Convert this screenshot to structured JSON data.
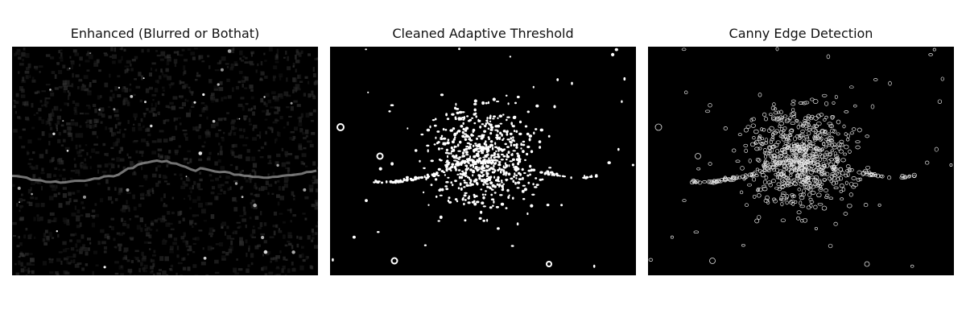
{
  "panels": [
    {
      "title": "Enhanced (Blurred or Bothat)",
      "style": "grayscale-noise",
      "colors": {
        "background": "#000000",
        "crack": "#9a9a9a"
      }
    },
    {
      "title": "Cleaned Adaptive Threshold",
      "style": "binary-dots",
      "colors": {
        "background": "#000000",
        "foreground": "#ffffff"
      }
    },
    {
      "title": "Canny Edge Detection",
      "style": "edge-outlines",
      "colors": {
        "background": "#000000",
        "foreground": "#e6e6e6"
      }
    }
  ]
}
